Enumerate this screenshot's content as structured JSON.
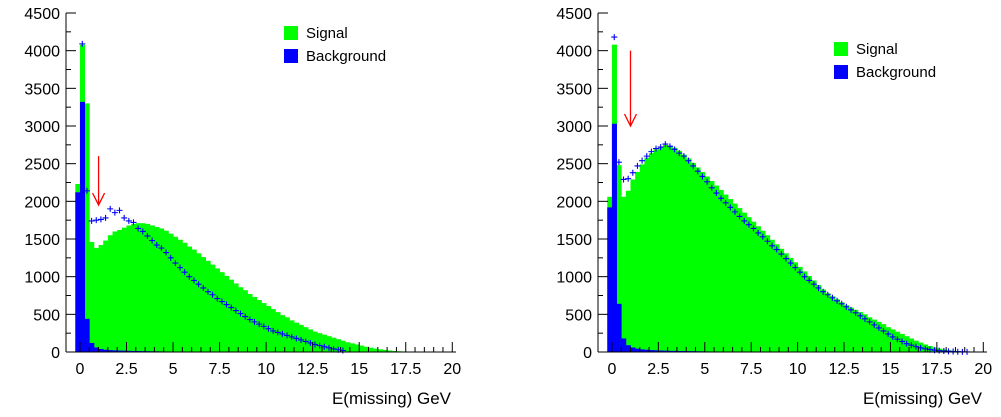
{
  "colors": {
    "signal": "#00ff00",
    "background": "#0000ff",
    "data": "#0000ff",
    "arrow": "#ff0000",
    "axis": "#000000"
  },
  "chart_data": [
    {
      "type": "bar",
      "title": "",
      "xlabel": "E(missing) GeV",
      "ylabel": "",
      "xlim": [
        -0.75,
        20.2
      ],
      "ylim": [
        0,
        4500
      ],
      "xticks": [
        0,
        2.5,
        5,
        7.5,
        10,
        12.5,
        15,
        17.5,
        20
      ],
      "xtick_labels": [
        "0",
        "2.5",
        "5",
        "7.5",
        "10",
        "12.5",
        "15",
        "17.5",
        "20"
      ],
      "yticks": [
        0,
        500,
        1000,
        1500,
        2000,
        2500,
        3000,
        3500,
        4000,
        4500
      ],
      "ytick_labels": [
        "0",
        "500",
        "1000",
        "1500",
        "2000",
        "2500",
        "3000",
        "3500",
        "4000",
        "4500"
      ],
      "bin_width": 0.25,
      "x_start": -0.25,
      "legend": {
        "position": "top-right",
        "entries": [
          "Signal",
          "Background"
        ]
      },
      "arrow_x": 1.0,
      "series": [
        {
          "name": "Signal",
          "kind": "stacked-hist",
          "values": [
            2230,
            4080,
            3300,
            1460,
            1380,
            1420,
            1480,
            1550,
            1600,
            1620,
            1650,
            1680,
            1700,
            1710,
            1710,
            1700,
            1680,
            1660,
            1640,
            1610,
            1570,
            1530,
            1490,
            1450,
            1400,
            1360,
            1310,
            1260,
            1210,
            1160,
            1110,
            1060,
            1010,
            960,
            910,
            860,
            820,
            770,
            730,
            690,
            650,
            610,
            570,
            530,
            490,
            460,
            420,
            390,
            360,
            330,
            300,
            270,
            250,
            230,
            210,
            190,
            170,
            150,
            130,
            115,
            100,
            85,
            70,
            58,
            46,
            36,
            28,
            20,
            14,
            10,
            7,
            5,
            3,
            2,
            1,
            0,
            0,
            0,
            0,
            0,
            0,
            0,
            0,
            0
          ]
        },
        {
          "name": "Background",
          "kind": "stacked-hist",
          "values": [
            2120,
            3320,
            440,
            120,
            60,
            40,
            30,
            25,
            22,
            20,
            18,
            16,
            14,
            13,
            12,
            11,
            10,
            9,
            8,
            7,
            6,
            6,
            5,
            5,
            4,
            4,
            3,
            3,
            3,
            2,
            2,
            2,
            2,
            1,
            1,
            1,
            1,
            1,
            1,
            1,
            0,
            0,
            0,
            0,
            0,
            0,
            0,
            0,
            0,
            0,
            0,
            0,
            0,
            0,
            0,
            0,
            0,
            0,
            0,
            0,
            0,
            0,
            0,
            0,
            0,
            0,
            0,
            0,
            0,
            0,
            0,
            0,
            0,
            0,
            0,
            0,
            0,
            0,
            0,
            0,
            0,
            0,
            0,
            0
          ]
        },
        {
          "kind": "points",
          "x": [
            0.125,
            0.375,
            0.625,
            0.875,
            1.125,
            1.375,
            1.625,
            1.875,
            2.125,
            2.375,
            2.625,
            2.875,
            3.125,
            3.375,
            3.625,
            3.875,
            4.125,
            4.375,
            4.625,
            4.875,
            5.125,
            5.375,
            5.625,
            5.875,
            6.125,
            6.375,
            6.625,
            6.875,
            7.125,
            7.375,
            7.625,
            7.875,
            8.125,
            8.375,
            8.625,
            8.875,
            9.125,
            9.375,
            9.625,
            9.875,
            10.125,
            10.375,
            10.625,
            10.875,
            11.125,
            11.375,
            11.625,
            11.875,
            12.125,
            12.375,
            12.625,
            12.875,
            13.125,
            13.375,
            13.625,
            13.875,
            14.125
          ],
          "y": [
            4090,
            2140,
            1740,
            1750,
            1760,
            1780,
            1900,
            1850,
            1880,
            1780,
            1740,
            1720,
            1640,
            1600,
            1540,
            1480,
            1420,
            1380,
            1320,
            1250,
            1180,
            1120,
            1060,
            1000,
            950,
            900,
            850,
            800,
            760,
            710,
            670,
            630,
            590,
            550,
            510,
            470,
            430,
            400,
            370,
            340,
            310,
            280,
            260,
            240,
            220,
            200,
            180,
            160,
            140,
            120,
            100,
            85,
            70,
            55,
            40,
            30,
            20
          ]
        }
      ]
    },
    {
      "type": "bar",
      "title": "",
      "xlabel": "E(missing) GeV",
      "ylabel": "",
      "xlim": [
        -0.75,
        20.2
      ],
      "ylim": [
        0,
        4500
      ],
      "xticks": [
        0,
        2.5,
        5,
        7.5,
        10,
        12.5,
        15,
        17.5,
        20
      ],
      "xtick_labels": [
        "0",
        "2.5",
        "5",
        "7.5",
        "10",
        "12.5",
        "15",
        "17.5",
        "20"
      ],
      "yticks": [
        0,
        500,
        1000,
        1500,
        2000,
        2500,
        3000,
        3500,
        4000,
        4500
      ],
      "ytick_labels": [
        "0",
        "500",
        "1000",
        "1500",
        "2000",
        "2500",
        "3000",
        "3500",
        "4000",
        "4500"
      ],
      "bin_width": 0.25,
      "x_start": -0.25,
      "legend": {
        "position": "top-right",
        "entries": [
          "Signal",
          "Background"
        ]
      },
      "arrow_x": 1.0,
      "series": [
        {
          "name": "Signal",
          "kind": "stacked-hist",
          "values": [
            2060,
            4080,
            2480,
            2060,
            2140,
            2290,
            2390,
            2490,
            2580,
            2640,
            2690,
            2720,
            2750,
            2740,
            2710,
            2670,
            2620,
            2570,
            2510,
            2450,
            2390,
            2330,
            2270,
            2210,
            2150,
            2090,
            2030,
            1970,
            1910,
            1850,
            1790,
            1730,
            1670,
            1610,
            1550,
            1490,
            1430,
            1370,
            1310,
            1250,
            1190,
            1130,
            1070,
            1010,
            950,
            890,
            830,
            780,
            740,
            700,
            660,
            620,
            590,
            560,
            530,
            500,
            460,
            430,
            400,
            370,
            330,
            300,
            270,
            240,
            210,
            180,
            150,
            125,
            100,
            80,
            62,
            46,
            34,
            24,
            16,
            10,
            6,
            3,
            1,
            0,
            0,
            0,
            0,
            0
          ]
        },
        {
          "name": "Background",
          "kind": "stacked-hist",
          "values": [
            1920,
            3030,
            640,
            180,
            90,
            60,
            45,
            35,
            30,
            26,
            23,
            20,
            18,
            16,
            15,
            14,
            13,
            12,
            11,
            10,
            9,
            8,
            7,
            7,
            6,
            6,
            5,
            5,
            4,
            4,
            4,
            3,
            3,
            3,
            3,
            2,
            2,
            2,
            2,
            2,
            2,
            2,
            1,
            1,
            1,
            1,
            1,
            1,
            1,
            1,
            1,
            1,
            1,
            1,
            1,
            1,
            1,
            1,
            1,
            1,
            1,
            0,
            0,
            0,
            0,
            0,
            0,
            0,
            0,
            0,
            0,
            0,
            0,
            0,
            0,
            0,
            0,
            0,
            0,
            0,
            0,
            0,
            0,
            0
          ]
        },
        {
          "kind": "points",
          "x": [
            0.125,
            0.375,
            0.625,
            0.875,
            1.125,
            1.375,
            1.625,
            1.875,
            2.125,
            2.375,
            2.625,
            2.875,
            3.125,
            3.375,
            3.625,
            3.875,
            4.125,
            4.375,
            4.625,
            4.875,
            5.125,
            5.375,
            5.625,
            5.875,
            6.125,
            6.375,
            6.625,
            6.875,
            7.125,
            7.375,
            7.625,
            7.875,
            8.125,
            8.375,
            8.625,
            8.875,
            9.125,
            9.375,
            9.625,
            9.875,
            10.125,
            10.375,
            10.625,
            10.875,
            11.125,
            11.375,
            11.625,
            11.875,
            12.125,
            12.375,
            12.625,
            12.875,
            13.125,
            13.375,
            13.625,
            13.875,
            14.125,
            14.375,
            14.625,
            14.875,
            15.125,
            15.375,
            15.625,
            15.875,
            16.125,
            16.375,
            16.625,
            16.875,
            17.125,
            17.375,
            17.625,
            17.875,
            18.125,
            18.375,
            18.625,
            18.875,
            19.125
          ],
          "y": [
            4180,
            2520,
            2290,
            2300,
            2380,
            2470,
            2540,
            2600,
            2660,
            2700,
            2720,
            2760,
            2730,
            2690,
            2640,
            2600,
            2540,
            2470,
            2400,
            2330,
            2260,
            2180,
            2110,
            2040,
            1980,
            1920,
            1860,
            1800,
            1740,
            1690,
            1640,
            1580,
            1530,
            1470,
            1410,
            1360,
            1300,
            1240,
            1180,
            1120,
            1060,
            1000,
            950,
            900,
            850,
            800,
            760,
            720,
            680,
            640,
            600,
            560,
            520,
            480,
            440,
            400,
            360,
            320,
            280,
            240,
            200,
            170,
            140,
            110,
            90,
            70,
            55,
            42,
            32,
            24,
            18,
            13,
            9,
            6,
            4,
            2,
            1
          ]
        }
      ]
    }
  ]
}
